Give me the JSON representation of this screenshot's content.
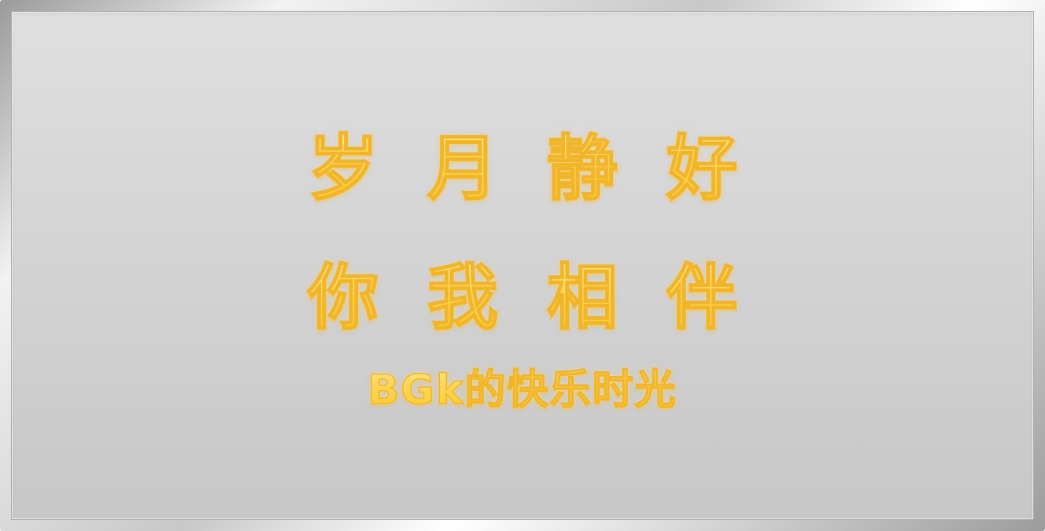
{
  "banner": {
    "line1": "岁月静好",
    "line2": "你我相伴",
    "line3": "BGk的快乐时光"
  },
  "colors": {
    "text_fill": "#ffd75a",
    "text_outline": "#f0b52a",
    "panel_background": "#d3d3d3",
    "frame": "#c8c8c8"
  }
}
